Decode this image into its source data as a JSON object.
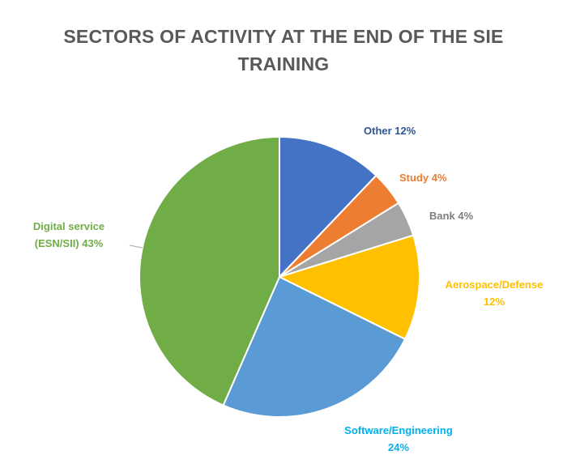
{
  "chart_data": {
    "type": "pie",
    "title_lines": [
      "SECTORS OF ACTIVITY AT THE END OF THE SIE",
      "TRAINING"
    ],
    "slices": [
      {
        "name": "Other",
        "value": 12,
        "color": "#4472C4",
        "label_lines": [
          "Other 12%"
        ]
      },
      {
        "name": "Study",
        "value": 4,
        "color": "#ED7D31",
        "label_lines": [
          "Study 4%"
        ]
      },
      {
        "name": "Bank",
        "value": 4,
        "color": "#A5A5A5",
        "label_lines": [
          "Bank 4%"
        ]
      },
      {
        "name": "Aerospace/Defense",
        "value": 12,
        "color": "#FFC000",
        "label_lines": [
          "Aerospace/Defense",
          "12%"
        ]
      },
      {
        "name": "Software/Engineering",
        "value": 24,
        "color": "#5B9BD5",
        "label_lines": [
          "Software/Engineering",
          "24%"
        ]
      },
      {
        "name": "Digital service (ESN/SII)",
        "value": 43,
        "color": "#70AD47",
        "label_lines": [
          "Digital service",
          "(ESN/SII) 43%"
        ]
      }
    ],
    "start_angle": "12 o'clock",
    "direction": "clockwise",
    "legend": "none",
    "label_colors": [
      "#2F5597",
      "#ED7D31",
      "#7F7F7F",
      "#FFC000",
      "#00B0F0",
      "#70AD47"
    ]
  }
}
